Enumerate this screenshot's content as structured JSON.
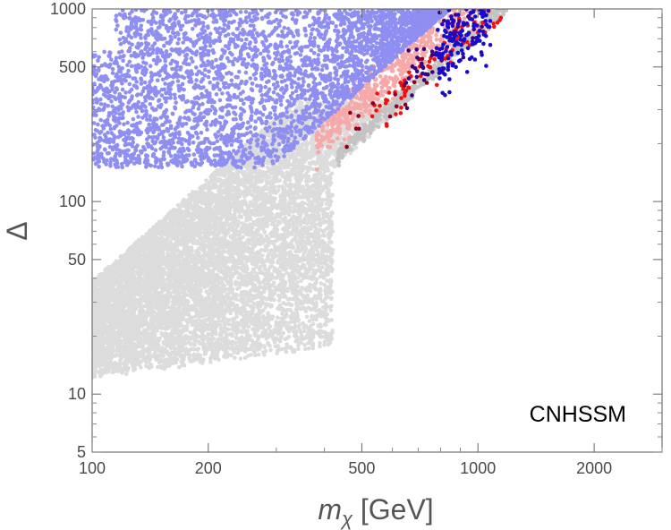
{
  "chart_data": {
    "type": "scatter",
    "title": "",
    "xlabel": "m_χ [GeV]",
    "xlabel_parts": {
      "symbol": "m",
      "subscript": "χ",
      "unit": " [GeV]"
    },
    "ylabel": "Δ",
    "xscale": "log",
    "yscale": "log",
    "xlim": [
      100,
      3000
    ],
    "ylim": [
      5,
      1000
    ],
    "x_ticks": [
      100,
      200,
      500,
      1000,
      2000
    ],
    "x_tick_labels": [
      "100",
      "200",
      "500",
      "1000",
      "2000"
    ],
    "y_ticks": [
      5,
      10,
      50,
      100,
      500,
      1000
    ],
    "y_tick_labels": [
      "5",
      "10",
      "50",
      "100",
      "500",
      "1000"
    ],
    "annotation": "CNHSSM",
    "annotation_position": "bottom-right",
    "grid": false,
    "colors": {
      "gray": "#dcdcdc",
      "gray_dark": "#c4c4c4",
      "light_red": "#f7a8a8",
      "light_blue": "#8f8ff2",
      "red": "#ee1111",
      "dark_red": "#880022",
      "dark_blue": "#1a0acc",
      "darker_blue": "#3a0088"
    },
    "series": [
      {
        "color_key": "gray",
        "count": 9000,
        "regions": [
          {
            "x_min": 100,
            "x_max": 1300,
            "y_min_at_xmin": 12,
            "slope": 1.79,
            "y_max": 330,
            "y_floor": 11
          }
        ]
      },
      {
        "color_key": "gray_dark",
        "count": 450,
        "band": {
          "x_min": 430,
          "x_max": 1300,
          "y_anchor": 170,
          "x_anchor": 430,
          "slope": 1.79,
          "thickness_dex": 0.06
        }
      },
      {
        "color_key": "light_red",
        "count": 550,
        "band": {
          "x_min": 380,
          "x_max": 1250,
          "y_anchor": 205,
          "x_anchor": 380,
          "slope": 1.79,
          "thickness_dex": 0.18
        }
      },
      {
        "color_key": "light_blue",
        "count": 3600,
        "regions": [
          {
            "x_min": 100,
            "x_max": 1050,
            "y_lo": 150,
            "y_hi": 1000,
            "edge_x_anchor": 390,
            "edge_y_anchor": 250,
            "edge_slope": 1.79
          }
        ]
      },
      {
        "color_key": "red",
        "count": 70,
        "band": {
          "x_min": 520,
          "x_max": 1300,
          "y_anchor": 250,
          "x_anchor": 520,
          "slope": 1.79,
          "thickness_dex": 0.14
        }
      },
      {
        "color_key": "dark_red",
        "count": 18,
        "band": {
          "x_min": 430,
          "x_max": 900,
          "y_anchor": 190,
          "x_anchor": 430,
          "slope": 1.79,
          "thickness_dex": 0.18
        }
      },
      {
        "color_key": "darker_blue",
        "count": 45,
        "band": {
          "x_min": 650,
          "x_max": 1050,
          "y_anchor": 420,
          "x_anchor": 650,
          "slope": 1.79,
          "thickness_dex": 0.25
        }
      },
      {
        "color_key": "dark_blue",
        "count": 140,
        "band": {
          "x_min": 780,
          "x_max": 1080,
          "y_anchor": 560,
          "x_anchor": 780,
          "slope": 1.6,
          "thickness_dex": 0.3
        }
      }
    ]
  }
}
